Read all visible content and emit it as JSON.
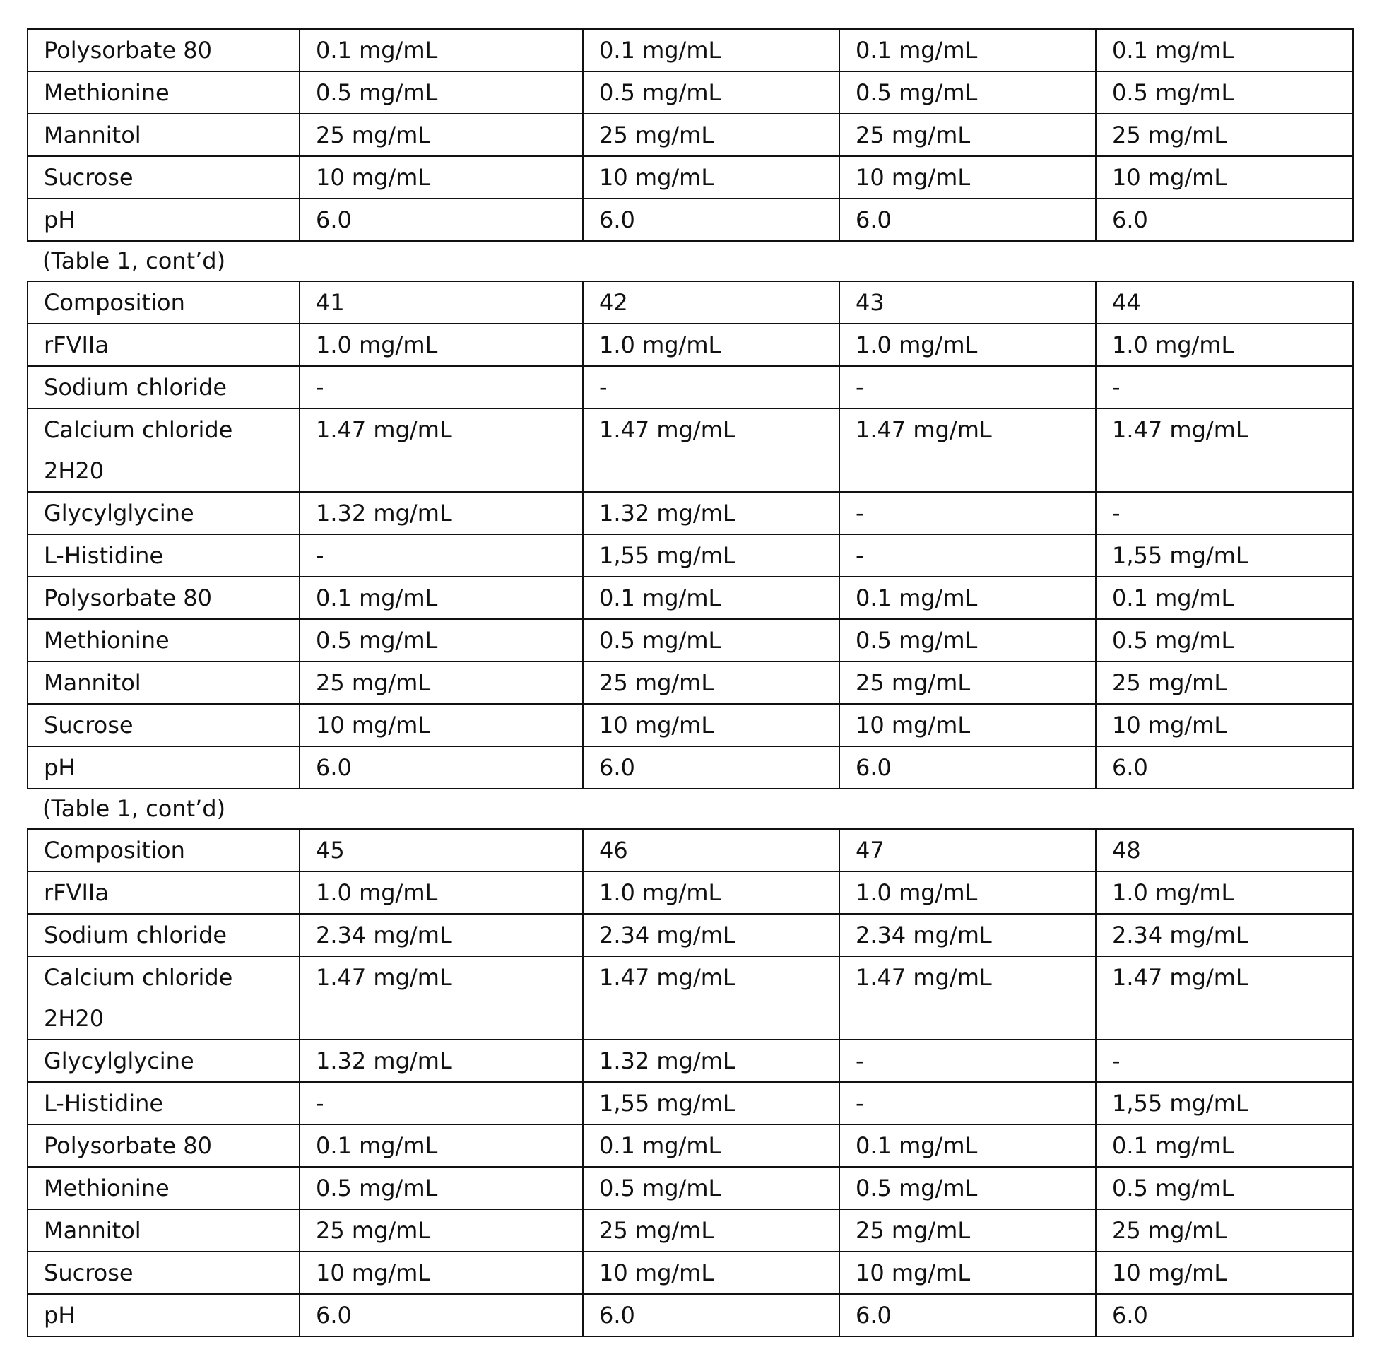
{
  "tables": [
    {
      "rows": [
        [
          "Polysorbate 80",
          "0.1 mg/mL",
          "0.1 mg/mL",
          "0.1 mg/mL",
          "0.1 mg/mL"
        ],
        [
          "Methionine",
          "0.5 mg/mL",
          "0.5 mg/mL",
          "0.5 mg/mL",
          "0.5 mg/mL"
        ],
        [
          "Mannitol",
          "25 mg/mL",
          "25 mg/mL",
          "25 mg/mL",
          "25 mg/mL"
        ],
        [
          "Sucrose",
          "10 mg/mL",
          "10 mg/mL",
          "10 mg/mL",
          "10 mg/mL"
        ],
        [
          "pH",
          "6.0",
          "6.0",
          "6.0",
          "6.0"
        ]
      ]
    },
    {
      "caption": "(Table 1, cont’d)",
      "rows": [
        [
          "Composition",
          "41",
          "42",
          "43",
          "44"
        ],
        [
          "rFVIIa",
          "1.0 mg/mL",
          "1.0 mg/mL",
          "1.0 mg/mL",
          "1.0 mg/mL"
        ],
        [
          "Sodium chloride",
          "-",
          "-",
          "-",
          "-"
        ],
        [
          "Calcium chloride 2H20",
          "1.47 mg/mL",
          "1.47 mg/mL",
          "1.47 mg/mL",
          "1.47 mg/mL"
        ],
        [
          "Glycylglycine",
          "1.32 mg/mL",
          "1.32 mg/mL",
          "-",
          "-"
        ],
        [
          "L-Histidine",
          "-",
          "1,55 mg/mL",
          "-",
          "1,55 mg/mL"
        ],
        [
          "Polysorbate 80",
          "0.1 mg/mL",
          "0.1 mg/mL",
          "0.1 mg/mL",
          "0.1 mg/mL"
        ],
        [
          "Methionine",
          "0.5 mg/mL",
          "0.5 mg/mL",
          "0.5 mg/mL",
          "0.5 mg/mL"
        ],
        [
          "Mannitol",
          "25 mg/mL",
          "25 mg/mL",
          "25 mg/mL",
          "25 mg/mL"
        ],
        [
          "Sucrose",
          "10 mg/mL",
          "10 mg/mL",
          "10 mg/mL",
          "10 mg/mL"
        ],
        [
          "pH",
          "6.0",
          "6.0",
          "6.0",
          "6.0"
        ]
      ]
    },
    {
      "caption": "(Table 1, cont’d)",
      "rows": [
        [
          "Composition",
          "45",
          "46",
          "47",
          "48"
        ],
        [
          "rFVIIa",
          "1.0 mg/mL",
          "1.0 mg/mL",
          "1.0 mg/mL",
          "1.0 mg/mL"
        ],
        [
          "Sodium chloride",
          "2.34 mg/mL",
          "2.34 mg/mL",
          "2.34 mg/mL",
          "2.34 mg/mL"
        ],
        [
          "Calcium chloride 2H20",
          "1.47 mg/mL",
          "1.47 mg/mL",
          "1.47 mg/mL",
          "1.47 mg/mL"
        ],
        [
          "Glycylglycine",
          "1.32 mg/mL",
          "1.32 mg/mL",
          "-",
          "-"
        ],
        [
          "L-Histidine",
          "-",
          "1,55 mg/mL",
          "-",
          "1,55 mg/mL"
        ],
        [
          "Polysorbate 80",
          "0.1 mg/mL",
          "0.1 mg/mL",
          "0.1 mg/mL",
          "0.1 mg/mL"
        ],
        [
          "Methionine",
          "0.5 mg/mL",
          "0.5 mg/mL",
          "0.5 mg/mL",
          "0.5 mg/mL"
        ],
        [
          "Mannitol",
          "25 mg/mL",
          "25 mg/mL",
          "25 mg/mL",
          "25 mg/mL"
        ],
        [
          "Sucrose",
          "10 mg/mL",
          "10 mg/mL",
          "10 mg/mL",
          "10 mg/mL"
        ],
        [
          "pH",
          "6.0",
          "6.0",
          "6.0",
          "6.0"
        ]
      ]
    }
  ]
}
